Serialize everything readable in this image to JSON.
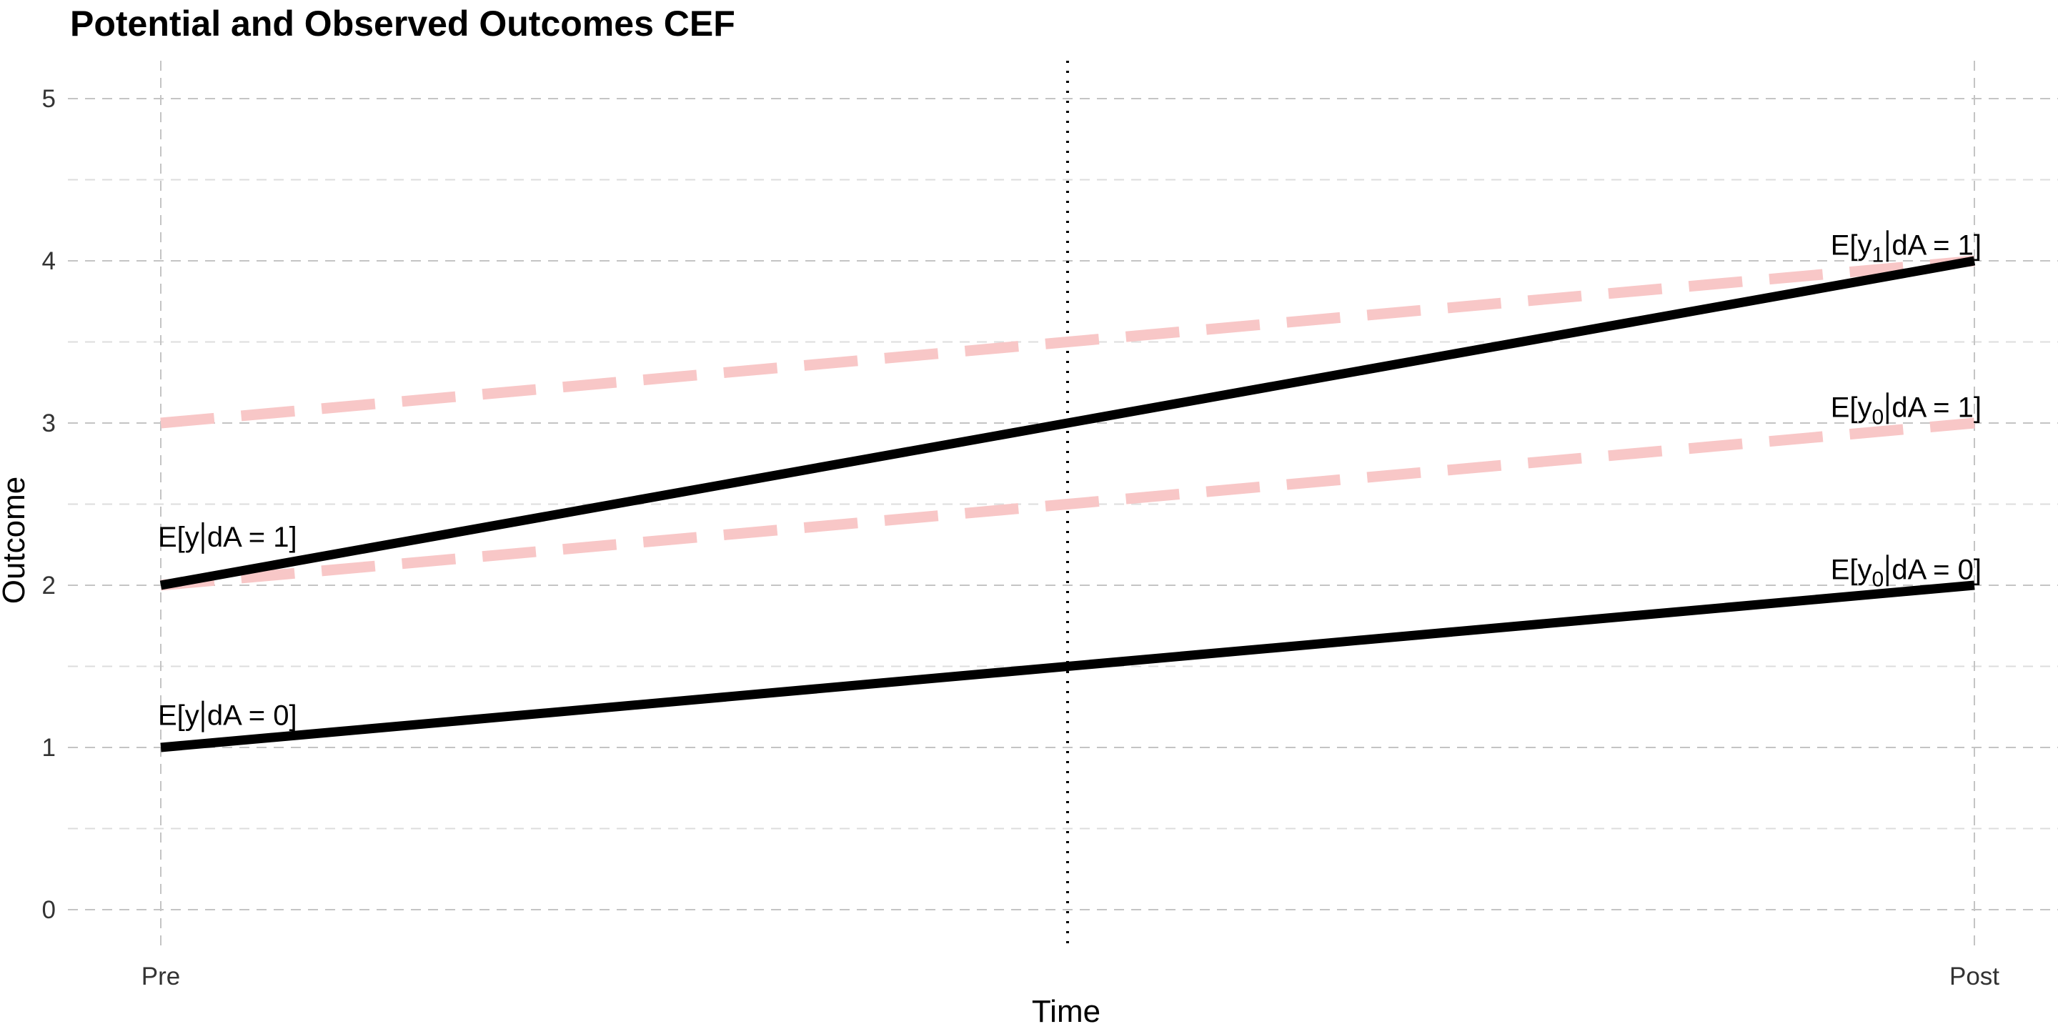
{
  "chart_data": {
    "type": "line",
    "title": "Potential and Observed Outcomes CEF",
    "xlabel": "Time",
    "ylabel": "Outcome",
    "categories": [
      "Pre",
      "Post"
    ],
    "x": [
      0,
      1
    ],
    "ylim": [
      -0.25,
      5.25
    ],
    "yticks": [
      "0",
      "1",
      "2",
      "3",
      "4",
      "5"
    ],
    "ytick_values": [
      0,
      1,
      2,
      3,
      4,
      5
    ],
    "grid": true,
    "vline_x": 0.5,
    "series": [
      {
        "id": "obs_treated",
        "values": [
          2,
          4
        ],
        "style": "solid",
        "color": "#000000"
      },
      {
        "id": "obs_control",
        "values": [
          1,
          2
        ],
        "style": "solid",
        "color": "#000000"
      },
      {
        "id": "cf_y1",
        "values": [
          3,
          4
        ],
        "style": "dashed",
        "color": "#f8c7c7"
      },
      {
        "id": "cf_y0",
        "values": [
          2,
          3
        ],
        "style": "dashed",
        "color": "#f8c7c7"
      }
    ],
    "annotations": [
      {
        "id": "ann-y-dA1",
        "base": "E[y",
        "sub": "",
        "tail": "dA = 1]",
        "x": 0,
        "y": 2.3,
        "anchor": "start"
      },
      {
        "id": "ann-y-dA0",
        "base": "E[y",
        "sub": "",
        "tail": "dA = 0]",
        "x": 0,
        "y": 1.2,
        "anchor": "start"
      },
      {
        "id": "ann-y1-dA1",
        "base": "E[y",
        "sub": "1",
        "tail": "dA = 1]",
        "x": 1,
        "y": 4.1,
        "anchor": "end"
      },
      {
        "id": "ann-y0-dA1",
        "base": "E[y",
        "sub": "0",
        "tail": "dA = 1]",
        "x": 1,
        "y": 3.1,
        "anchor": "end"
      },
      {
        "id": "ann-y0-dA0",
        "base": "E[y",
        "sub": "0",
        "tail": "dA = 0]",
        "x": 1,
        "y": 2.1,
        "anchor": "end"
      }
    ]
  }
}
